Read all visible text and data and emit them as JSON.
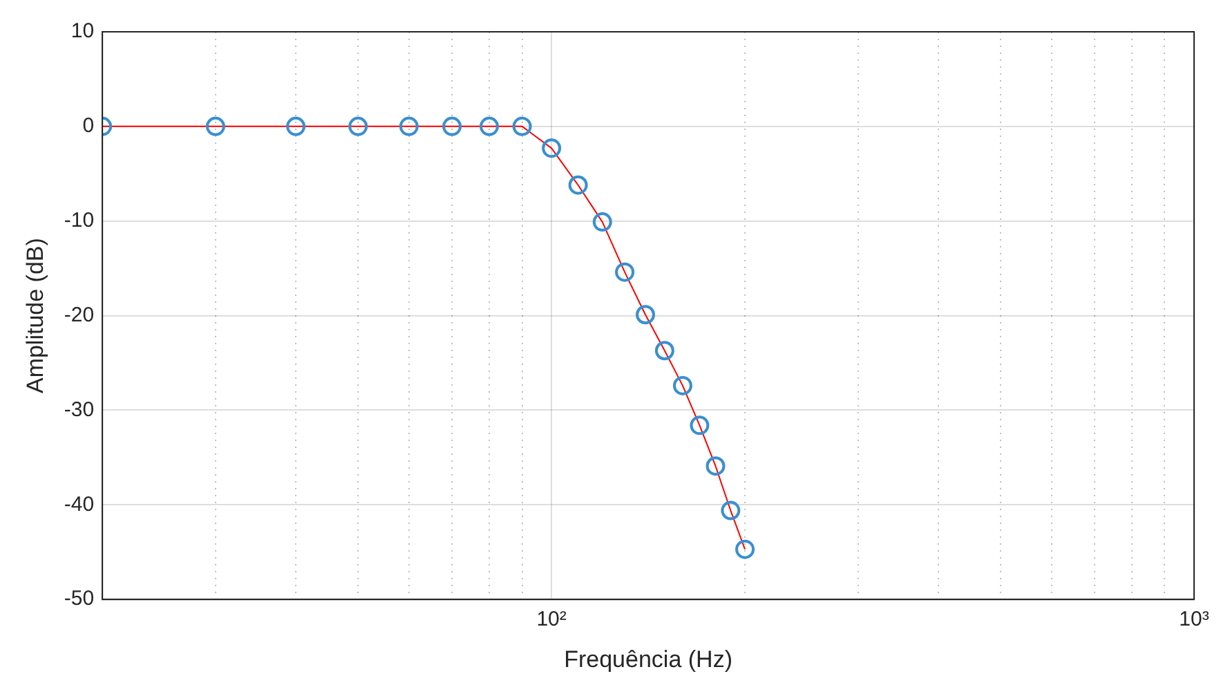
{
  "chart_data": {
    "type": "line",
    "xlabel": "Frequência (Hz)",
    "ylabel": "Amplitude (dB)",
    "log": "x",
    "x": [
      20,
      30,
      40,
      50,
      60,
      70,
      80,
      90,
      100,
      110,
      120,
      130,
      140,
      150,
      160,
      170,
      180,
      190,
      200
    ],
    "series": [
      {
        "type": "line",
        "color": "#ff0000",
        "marker": "none",
        "line_style": "solid",
        "values": [
          0,
          0,
          0,
          0,
          0,
          0,
          0,
          0,
          -2.3,
          -6.2,
          -10.1,
          -15.4,
          -19.9,
          -23.7,
          -27.4,
          -31.6,
          -35.9,
          -40.6,
          -44.7
        ]
      },
      {
        "type": "scatter",
        "color": "#3a8fd0",
        "marker": "circle",
        "values": [
          0,
          0,
          0,
          0,
          0,
          0,
          0,
          0,
          -2.3,
          -6.2,
          -10.1,
          -15.4,
          -19.9,
          -23.7,
          -27.4,
          -31.6,
          -35.9,
          -40.6,
          -44.7
        ]
      }
    ],
    "xlim": [
      20,
      1000
    ],
    "xticks": [
      {
        "value": 20,
        "label": null
      },
      {
        "value": 30,
        "label": null
      },
      {
        "value": 40,
        "label": null
      },
      {
        "value": 50,
        "label": null
      },
      {
        "value": 60,
        "label": null
      },
      {
        "value": 70,
        "label": null
      },
      {
        "value": 80,
        "label": null
      },
      {
        "value": 90,
        "label": null
      },
      {
        "value": 100,
        "label": "10²"
      },
      {
        "value": 200,
        "label": null
      },
      {
        "value": 300,
        "label": null
      },
      {
        "value": 400,
        "label": null
      },
      {
        "value": 500,
        "label": null
      },
      {
        "value": 600,
        "label": null
      },
      {
        "value": 700,
        "label": null
      },
      {
        "value": 800,
        "label": null
      },
      {
        "value": 900,
        "label": null
      },
      {
        "value": 1000,
        "label": "10³"
      }
    ],
    "ylim": [
      -50,
      10
    ],
    "yticks": [
      -50,
      -40,
      -30,
      -20,
      -10,
      0,
      10
    ],
    "grid": true,
    "legend": false
  }
}
